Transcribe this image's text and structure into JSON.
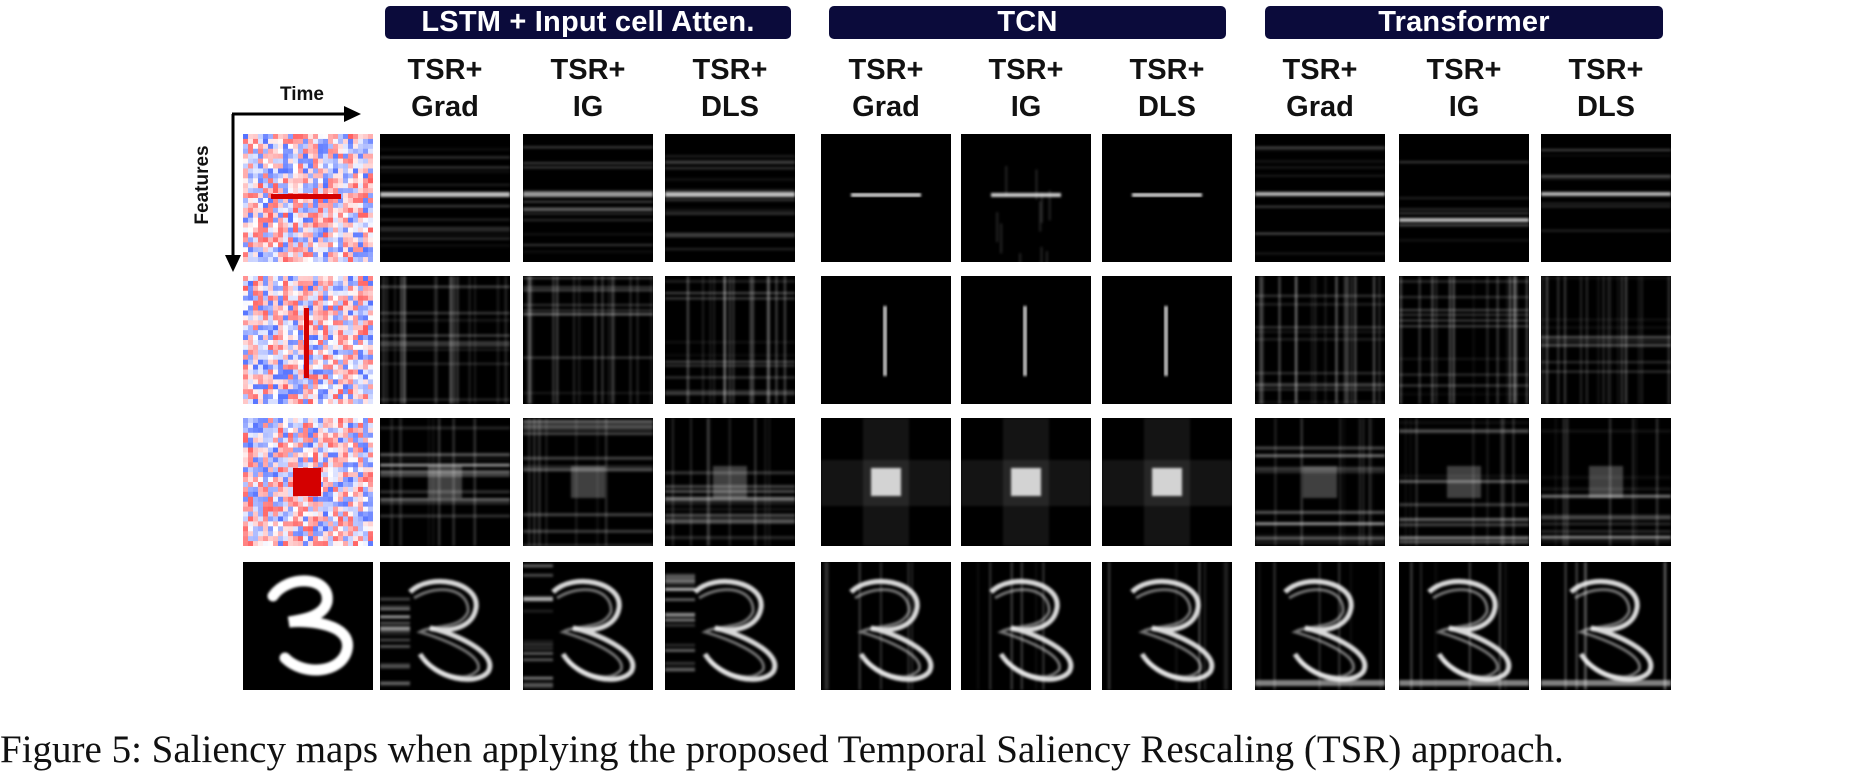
{
  "figure": {
    "groups": [
      {
        "title": "LSTM + Input cell Atten.",
        "methods": [
          {
            "line1": "TSR+",
            "line2": "Grad"
          },
          {
            "line1": "TSR+",
            "line2": "IG"
          },
          {
            "line1": "TSR+",
            "line2": "DLS"
          }
        ]
      },
      {
        "title": "TCN",
        "methods": [
          {
            "line1": "TSR+",
            "line2": "Grad"
          },
          {
            "line1": "TSR+",
            "line2": "IG"
          },
          {
            "line1": "TSR+",
            "line2": "DLS"
          }
        ]
      },
      {
        "title": "Transformer",
        "methods": [
          {
            "line1": "TSR+",
            "line2": "Grad"
          },
          {
            "line1": "TSR+",
            "line2": "IG"
          },
          {
            "line1": "TSR+",
            "line2": "DLS"
          }
        ]
      }
    ],
    "axes": {
      "time": "Time",
      "features": "Features"
    },
    "colors": {
      "header_bg": "#0b0b3b",
      "input_red": "#d40000",
      "input_blue": "#4a5cf0",
      "saliency_bg": "#000000"
    },
    "caption": "Figure 5: Saliency maps when applying the proposed Temporal Saliency Rescaling (TSR) approach."
  }
}
